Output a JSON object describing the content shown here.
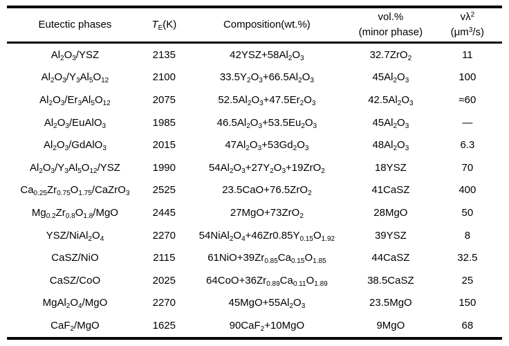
{
  "colors": {
    "background": "#ffffff",
    "text": "#000000",
    "rule": "#000000"
  },
  "chart_data": {
    "type": "table",
    "title": "",
    "columns": [
      "Eutectic phases",
      "TE(K)",
      "Composition(wt.%)",
      "vol.% (minor phase)",
      "vλ² (μm³/s)"
    ],
    "rows": [
      [
        "Al₂O₃/YSZ",
        "2135",
        "42YSZ+58Al₂O₃",
        "32.7ZrO₂",
        "11"
      ],
      [
        "Al₂O₃/Y₃Al₅O₁₂",
        "2100",
        "33.5Y₂O₃+66.5Al₂O₃",
        "45Al₂O₃",
        "100"
      ],
      [
        "Al₂O₃/Er₃Al₅O₁₂",
        "2075",
        "52.5Al₂O₃+47.5Er₂O₃",
        "42.5Al₂O₃",
        "≈60"
      ],
      [
        "Al₂O₃/EuAlO₃",
        "1985",
        "46.5Al₂O₃+53.5Eu₂O₃",
        "45Al₂O₃",
        "—"
      ],
      [
        "Al₂O₃/GdAlO₃",
        "2015",
        "47Al₂O₃+53Gd₂O₃",
        "48Al₂O₃",
        "6.3"
      ],
      [
        "Al₂O₃/Y₃Al₅O₁₂/YSZ",
        "1990",
        "54Al₂O₃+27Y₂O₃+19ZrO₂",
        "18YSZ",
        "70"
      ],
      [
        "Ca₀.₂₅Zr₀.₇₅O₁.₇₅/CaZrO₃",
        "2525",
        "23.5CaO+76.5ZrO₂",
        "41CaSZ",
        "400"
      ],
      [
        "Mg₀.₂Zr₀.₈O₁.₈/MgO",
        "2445",
        "27MgO+73ZrO₂",
        "28MgO",
        "50"
      ],
      [
        "YSZ/NiAl₂O₄",
        "2270",
        "54NiAl₂O₄+46Zr0.85Y₀.₁₅O₁.₉₂",
        "39YSZ",
        "8"
      ],
      [
        "CaSZ/NiO",
        "2115",
        "61NiO+39Zr₀.₈₅Ca₀.₁₅O₁.₈₅",
        "44CaSZ",
        "32.5"
      ],
      [
        "CaSZ/CoO",
        "2025",
        "64CoO+36Zr₀.₈₉Ca₀.₁₁O₁.₈₉",
        "38.5CaSZ",
        "25"
      ],
      [
        "MgAl₂O₄/MgO",
        "2270",
        "45MgO+55Al₂O₃",
        "23.5MgO",
        "150"
      ],
      [
        "CaF₂/MgO",
        "1625",
        "90CaF₂+10MgO",
        "9MgO",
        "68"
      ]
    ]
  },
  "table": {
    "header": {
      "phases": {
        "lines": [
          [
            "Eutectic phases"
          ]
        ]
      },
      "te": {
        "lines": [
          [
            {
              "i": "T"
            },
            {
              "s": "E"
            },
            "(K)"
          ]
        ]
      },
      "composition": {
        "lines": [
          [
            "Composition(wt.%)"
          ]
        ]
      },
      "vol": {
        "lines": [
          [
            "vol.%"
          ],
          [
            "(minor phase)"
          ]
        ]
      },
      "vlambda": {
        "lines": [
          [
            "vλ",
            {
              "p": "2"
            }
          ],
          [
            "(μm",
            {
              "p": "3"
            },
            "/s)"
          ]
        ]
      }
    },
    "rows": [
      {
        "phases": [
          "Al",
          {
            "s": "2"
          },
          "O",
          {
            "s": "3"
          },
          "/YSZ"
        ],
        "te": "2135",
        "composition": [
          "42YSZ+58Al",
          {
            "s": "2"
          },
          "O",
          {
            "s": "3"
          }
        ],
        "vol": [
          "32.7ZrO",
          {
            "s": "2"
          }
        ],
        "vlambda": "11"
      },
      {
        "phases": [
          "Al",
          {
            "s": "2"
          },
          "O",
          {
            "s": "3"
          },
          "/Y",
          {
            "s": "3"
          },
          "Al",
          {
            "s": "5"
          },
          "O",
          {
            "s": "12"
          }
        ],
        "te": "2100",
        "composition": [
          "33.5Y",
          {
            "s": "2"
          },
          "O",
          {
            "s": "3"
          },
          "+66.5Al",
          {
            "s": "2"
          },
          "O",
          {
            "s": "3"
          }
        ],
        "vol": [
          "45Al",
          {
            "s": "2"
          },
          "O",
          {
            "s": "3"
          }
        ],
        "vlambda": "100"
      },
      {
        "phases": [
          "Al",
          {
            "s": "2"
          },
          "O",
          {
            "s": "3"
          },
          "/Er",
          {
            "s": "3"
          },
          "Al",
          {
            "s": "5"
          },
          "O",
          {
            "s": "12"
          }
        ],
        "te": "2075",
        "composition": [
          "52.5Al",
          {
            "s": "2"
          },
          "O",
          {
            "s": "3"
          },
          "+47.5Er",
          {
            "s": "2"
          },
          "O",
          {
            "s": "3"
          }
        ],
        "vol": [
          "42.5Al",
          {
            "s": "2"
          },
          "O",
          {
            "s": "3"
          }
        ],
        "vlambda": "≈60"
      },
      {
        "phases": [
          "Al",
          {
            "s": "2"
          },
          "O",
          {
            "s": "3"
          },
          "/EuAlO",
          {
            "s": "3"
          }
        ],
        "te": "1985",
        "composition": [
          "46.5Al",
          {
            "s": "2"
          },
          "O",
          {
            "s": "3"
          },
          "+53.5Eu",
          {
            "s": "2"
          },
          "O",
          {
            "s": "3"
          }
        ],
        "vol": [
          "45Al",
          {
            "s": "2"
          },
          "O",
          {
            "s": "3"
          }
        ],
        "vlambda": "—"
      },
      {
        "phases": [
          "Al",
          {
            "s": "2"
          },
          "O",
          {
            "s": "3"
          },
          "/GdAlO",
          {
            "s": "3"
          }
        ],
        "te": "2015",
        "composition": [
          "47Al",
          {
            "s": "2"
          },
          "O",
          {
            "s": "3"
          },
          "+53Gd",
          {
            "s": "2"
          },
          "O",
          {
            "s": "3"
          }
        ],
        "vol": [
          "48Al",
          {
            "s": "2"
          },
          "O",
          {
            "s": "3"
          }
        ],
        "vlambda": "6.3"
      },
      {
        "phases": [
          "Al",
          {
            "s": "2"
          },
          "O",
          {
            "s": "3"
          },
          "/Y",
          {
            "s": "3"
          },
          "Al",
          {
            "s": "5"
          },
          "O",
          {
            "s": "12"
          },
          "/YSZ"
        ],
        "te": "1990",
        "composition": [
          "54Al",
          {
            "s": "2"
          },
          "O",
          {
            "s": "3"
          },
          "+27Y",
          {
            "s": "2"
          },
          "O",
          {
            "s": "3"
          },
          "+19ZrO",
          {
            "s": "2"
          }
        ],
        "vol": "18YSZ",
        "vlambda": "70"
      },
      {
        "phases": [
          "Ca",
          {
            "s": "0.25"
          },
          "Zr",
          {
            "s": "0.75"
          },
          "O",
          {
            "s": "1.75"
          },
          "/CaZrO",
          {
            "s": "3"
          }
        ],
        "te": "2525",
        "composition": [
          "23.5CaO+76.5ZrO",
          {
            "s": "2"
          }
        ],
        "vol": "41CaSZ",
        "vlambda": "400"
      },
      {
        "phases": [
          "Mg",
          {
            "s": "0.2"
          },
          "Zr",
          {
            "s": "0.8"
          },
          "O",
          {
            "s": "1.8"
          },
          "/MgO"
        ],
        "te": "2445",
        "composition": [
          "27MgO+73ZrO",
          {
            "s": "2"
          }
        ],
        "vol": "28MgO",
        "vlambda": "50"
      },
      {
        "phases": [
          "YSZ/NiAl",
          {
            "s": "2"
          },
          "O",
          {
            "s": "4"
          }
        ],
        "te": "2270",
        "composition": [
          "54NiAl",
          {
            "s": "2"
          },
          "O",
          {
            "s": "4"
          },
          "+46Zr0.85Y",
          {
            "s": "0.15"
          },
          "O",
          {
            "s": "1.92"
          }
        ],
        "vol": "39YSZ",
        "vlambda": "8"
      },
      {
        "phases": "CaSZ/NiO",
        "te": "2115",
        "composition": [
          "61NiO+39Zr",
          {
            "s": "0.85"
          },
          "Ca",
          {
            "s": "0.15"
          },
          "O",
          {
            "s": "1.85"
          }
        ],
        "vol": "44CaSZ",
        "vlambda": "32.5"
      },
      {
        "phases": "CaSZ/CoO",
        "te": "2025",
        "composition": [
          "64CoO+36Zr",
          {
            "s": "0.89"
          },
          "Ca",
          {
            "s": "0.11"
          },
          "O",
          {
            "s": "1.89"
          }
        ],
        "vol": "38.5CaSZ",
        "vlambda": "25"
      },
      {
        "phases": [
          "MgAl",
          {
            "s": "2"
          },
          "O",
          {
            "s": "4"
          },
          "/MgO"
        ],
        "te": "2270",
        "composition": [
          "45MgO+55Al",
          {
            "s": "2"
          },
          "O",
          {
            "s": "3"
          }
        ],
        "vol": "23.5MgO",
        "vlambda": "150"
      },
      {
        "phases": [
          "CaF",
          {
            "s": "2"
          },
          "/MgO"
        ],
        "te": "1625",
        "composition": [
          "90CaF",
          {
            "s": "2"
          },
          "+10MgO"
        ],
        "vol": "9MgO",
        "vlambda": "68"
      }
    ]
  }
}
